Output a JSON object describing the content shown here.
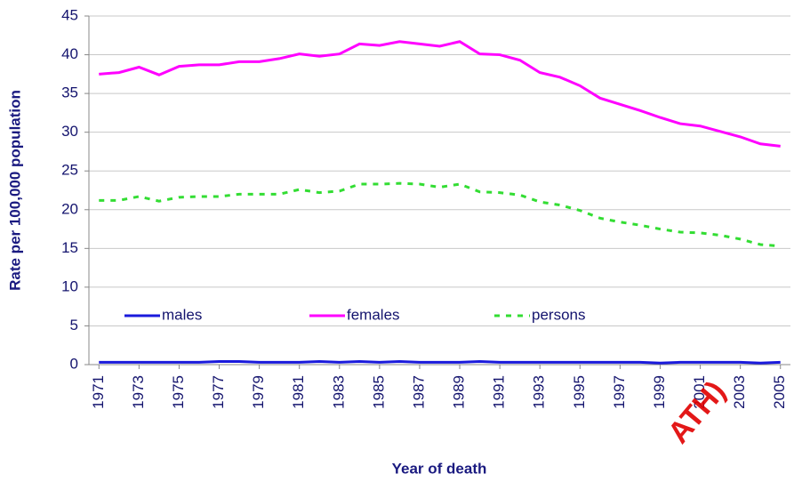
{
  "chart_data": {
    "type": "line",
    "ylabel": "Rate per 100,000 population",
    "xlabel": "Year of death",
    "x": [
      1971,
      1972,
      1973,
      1974,
      1975,
      1976,
      1977,
      1978,
      1979,
      1980,
      1981,
      1982,
      1983,
      1984,
      1985,
      1986,
      1987,
      1988,
      1989,
      1990,
      1991,
      1992,
      1993,
      1994,
      1995,
      1996,
      1997,
      1998,
      1999,
      2000,
      2001,
      2002,
      2003,
      2004,
      2005
    ],
    "xlim": [
      1970.5,
      2005.5
    ],
    "xticks": [
      1971,
      1973,
      1975,
      1977,
      1979,
      1981,
      1983,
      1985,
      1987,
      1989,
      1991,
      1993,
      1995,
      1997,
      1999,
      2001,
      2003,
      2005
    ],
    "ylim": [
      0,
      45
    ],
    "yticks": [
      0,
      5,
      10,
      15,
      20,
      25,
      30,
      35,
      40,
      45
    ],
    "grid": true,
    "legend": "center-left",
    "series": [
      {
        "name": "males",
        "color": "#1a1adc",
        "style": "solid",
        "values": [
          0.3,
          0.3,
          0.3,
          0.3,
          0.3,
          0.3,
          0.4,
          0.4,
          0.3,
          0.3,
          0.3,
          0.4,
          0.3,
          0.4,
          0.3,
          0.4,
          0.3,
          0.3,
          0.3,
          0.4,
          0.3,
          0.3,
          0.3,
          0.3,
          0.3,
          0.3,
          0.3,
          0.3,
          0.2,
          0.3,
          0.3,
          0.3,
          0.3,
          0.2,
          0.3
        ]
      },
      {
        "name": "females",
        "color": "#ff00ff",
        "style": "solid",
        "values": [
          37.5,
          37.7,
          38.4,
          37.4,
          38.5,
          38.7,
          38.7,
          39.1,
          39.1,
          39.5,
          40.1,
          39.8,
          40.1,
          41.4,
          41.2,
          41.7,
          41.4,
          41.1,
          41.7,
          40.1,
          40.0,
          39.3,
          37.7,
          37.1,
          36.0,
          34.4,
          33.6,
          32.8,
          31.9,
          31.1,
          30.8,
          30.1,
          29.4,
          28.5,
          28.2
        ]
      },
      {
        "name": "persons",
        "color": "#33dd33",
        "style": "dashed",
        "values": [
          21.2,
          21.2,
          21.7,
          21.1,
          21.6,
          21.7,
          21.7,
          22.0,
          22.0,
          22.0,
          22.6,
          22.2,
          22.4,
          23.3,
          23.3,
          23.4,
          23.3,
          22.9,
          23.3,
          22.3,
          22.2,
          21.9,
          21.0,
          20.6,
          19.9,
          18.9,
          18.4,
          18.0,
          17.5,
          17.1,
          17.0,
          16.7,
          16.2,
          15.5,
          15.3
        ]
      }
    ],
    "annotation": "ATH)"
  }
}
